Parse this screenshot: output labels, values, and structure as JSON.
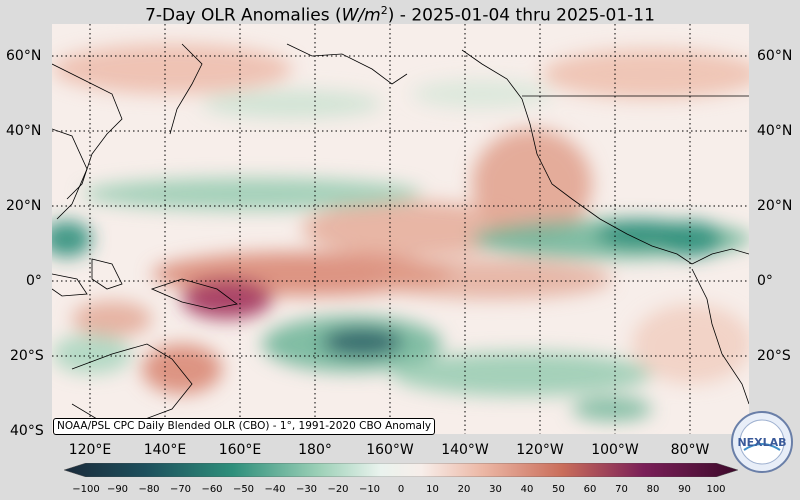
{
  "title_prefix": "7-Day OLR Anomalies (",
  "title_unit": "W/m",
  "title_sup": "2",
  "title_suffix": ") - 2025-01-04 thru 2025-01-11",
  "lat_labels": [
    "60°N",
    "40°N",
    "20°N",
    "0°",
    "20°S",
    "40°S"
  ],
  "lon_labels": [
    "120°E",
    "140°E",
    "160°E",
    "180°",
    "160°W",
    "140°W",
    "120°W",
    "100°W",
    "80°W"
  ],
  "credit": "NOAA/PSL CPC Daily Blended OLR (CBO) - 1°, 1991-2020 CBO Anomaly",
  "colorbar_ticks": [
    "−100",
    "−90",
    "−80",
    "−70",
    "−60",
    "−50",
    "−40",
    "−30",
    "−20",
    "−10",
    "0",
    "10",
    "20",
    "30",
    "40",
    "50",
    "60",
    "70",
    "80",
    "90",
    "100"
  ],
  "colors": {
    "neg_strong": "#1d4f5c",
    "neg": "#2e8f7b",
    "neg_light": "#9ed1b8",
    "neutral": "#f7eeea",
    "pos_light": "#ecb8a6",
    "pos": "#c96d5a",
    "pos_strong": "#7a1f58",
    "pos_max": "#3d0a2b"
  },
  "logo_text": "NEXLAB"
}
